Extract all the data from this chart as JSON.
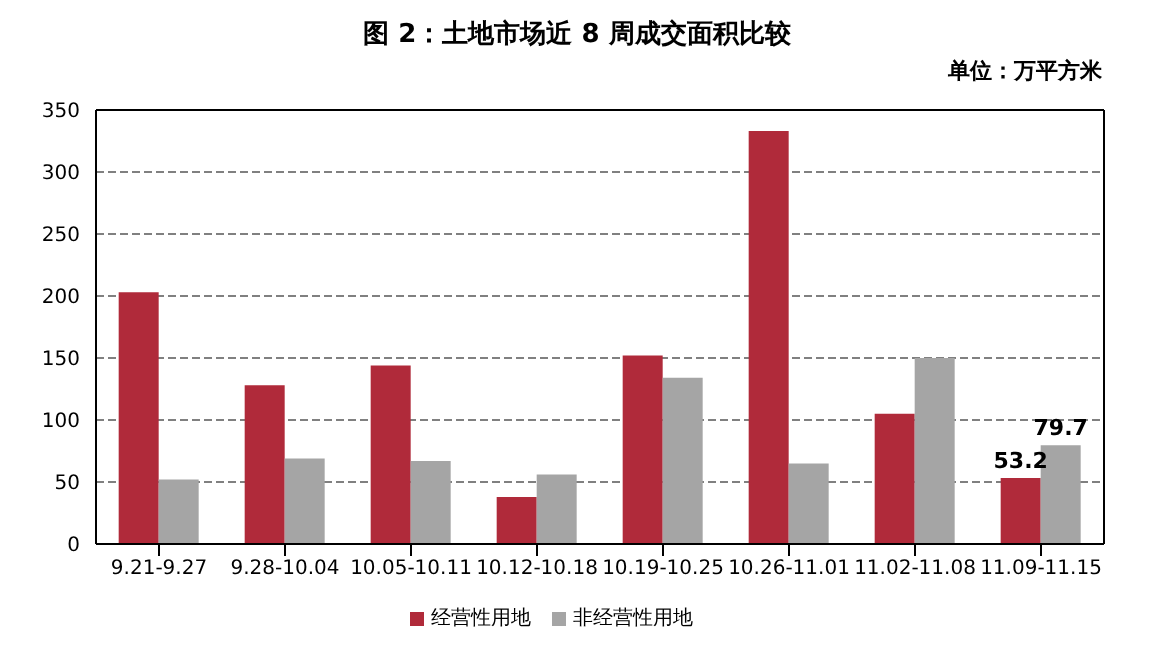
{
  "chart_data": {
    "type": "bar",
    "title": "图 2：土地市场近 8 周成交面积比较",
    "subtitle": "单位：万平方米",
    "categories": [
      "9.21-9.27",
      "9.28-10.04",
      "10.05-10.11",
      "10.12-10.18",
      "10.19-10.25",
      "10.26-11.01",
      "11.02-11.08",
      "11.09-11.15"
    ],
    "series": [
      {
        "name": "经营性用地",
        "color": "#b02a3a",
        "values": [
          203,
          128,
          144,
          38,
          152,
          333,
          105,
          53.2
        ],
        "value_labels": [
          null,
          null,
          null,
          null,
          null,
          null,
          null,
          "53.2"
        ]
      },
      {
        "name": "非经营性用地",
        "color": "#a5a5a5",
        "values": [
          52,
          69,
          67,
          56,
          134,
          65,
          150,
          79.7
        ],
        "value_labels": [
          null,
          null,
          null,
          null,
          null,
          null,
          null,
          "79.7"
        ]
      }
    ],
    "ylim": [
      0,
      350
    ],
    "yticks": [
      0,
      50,
      100,
      150,
      200,
      250,
      300,
      350
    ],
    "grid": "y",
    "legend": "bottom"
  }
}
